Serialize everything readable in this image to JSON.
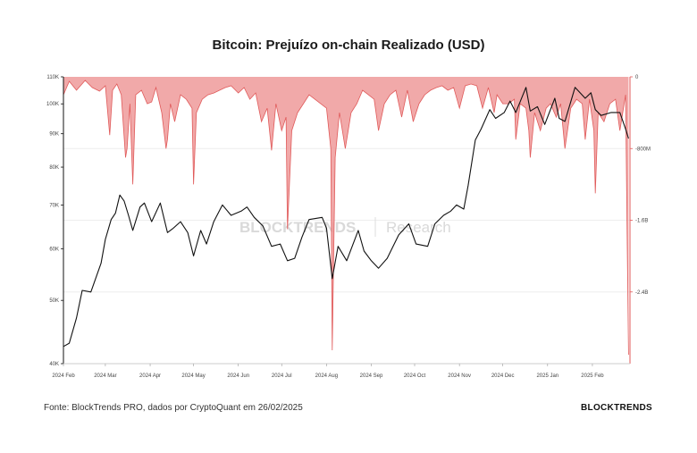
{
  "chart_data": {
    "type": "line",
    "title": "Bitcoin: Prejuízo on-chain Realizado (USD)",
    "xlabel": "",
    "x_ticks": [
      "2024 Feb",
      "2024 Mar",
      "2024 Apr",
      "2024 May",
      "2024 Jun",
      "2024 Jul",
      "2024 Aug",
      "2024 Sep",
      "2024 Oct",
      "2024 Nov",
      "2024 Dec",
      "2025 Jan",
      "2025 Feb"
    ],
    "left_axis": {
      "scale": "log",
      "ylim": [
        40000,
        110000
      ],
      "ticks": [
        40000,
        50000,
        60000,
        70000,
        80000,
        90000,
        100000,
        110000
      ],
      "tick_labels": [
        "40K",
        "50K",
        "60K",
        "70K",
        "80K",
        "90K",
        "100K",
        "110K"
      ]
    },
    "right_axis": {
      "scale": "linear",
      "ylim": [
        -3200000000,
        0
      ],
      "ticks": [
        0,
        -800000000,
        -1600000000,
        -2400000000
      ],
      "tick_labels": [
        "0",
        "-800M",
        "-1.6B",
        "-2.4B"
      ]
    },
    "series": [
      {
        "axis": "left",
        "style": "line",
        "color": "#111111",
        "x": [
          "2024-02-01",
          "2024-02-05",
          "2024-02-10",
          "2024-02-14",
          "2024-02-20",
          "2024-02-27",
          "2024-03-01",
          "2024-03-05",
          "2024-03-08",
          "2024-03-11",
          "2024-03-14",
          "2024-03-17",
          "2024-03-20",
          "2024-03-25",
          "2024-03-28",
          "2024-04-02",
          "2024-04-08",
          "2024-04-13",
          "2024-04-17",
          "2024-04-22",
          "2024-04-27",
          "2024-05-01",
          "2024-05-06",
          "2024-05-10",
          "2024-05-15",
          "2024-05-21",
          "2024-05-27",
          "2024-06-03",
          "2024-06-07",
          "2024-06-12",
          "2024-06-18",
          "2024-06-24",
          "2024-06-30",
          "2024-07-05",
          "2024-07-10",
          "2024-07-15",
          "2024-07-20",
          "2024-07-29",
          "2024-08-01",
          "2024-08-05",
          "2024-08-09",
          "2024-08-15",
          "2024-08-23",
          "2024-08-27",
          "2024-09-01",
          "2024-09-06",
          "2024-09-12",
          "2024-09-20",
          "2024-09-27",
          "2024-10-02",
          "2024-10-10",
          "2024-10-15",
          "2024-10-21",
          "2024-10-26",
          "2024-10-30",
          "2024-11-04",
          "2024-11-07",
          "2024-11-12",
          "2024-11-16",
          "2024-11-22",
          "2024-11-26",
          "2024-12-02",
          "2024-12-06",
          "2024-12-10",
          "2024-12-17",
          "2024-12-20",
          "2024-12-25",
          "2024-12-30",
          "2025-01-06",
          "2025-01-09",
          "2025-01-13",
          "2025-01-20",
          "2025-01-27",
          "2025-01-31",
          "2025-02-03",
          "2025-02-07",
          "2025-02-14",
          "2025-02-20",
          "2025-02-24",
          "2025-02-26"
        ],
        "values": [
          42500,
          43000,
          47000,
          51800,
          51500,
          57000,
          62000,
          66500,
          68000,
          72500,
          71000,
          67500,
          64000,
          69500,
          70500,
          66000,
          70500,
          63500,
          64500,
          66000,
          63500,
          58500,
          64000,
          61000,
          66000,
          70000,
          67500,
          68500,
          69500,
          67000,
          65000,
          60500,
          61000,
          57500,
          58000,
          62500,
          66500,
          67000,
          64500,
          54000,
          60500,
          57500,
          64000,
          59500,
          57500,
          56000,
          58000,
          63000,
          65500,
          61000,
          60500,
          65500,
          67500,
          68500,
          70000,
          69000,
          75000,
          88000,
          91500,
          98000,
          95000,
          97000,
          101000,
          97000,
          106000,
          97500,
          99000,
          93000,
          102000,
          95000,
          94000,
          106000,
          102000,
          104000,
          98000,
          96000,
          97000,
          97000,
          91500,
          88500
        ]
      },
      {
        "axis": "right",
        "style": "area",
        "color": "#e05a5a",
        "fill": "#ef9a9a",
        "x": [
          "2024-02-01",
          "2024-02-05",
          "2024-02-10",
          "2024-02-16",
          "2024-02-21",
          "2024-02-26",
          "2024-03-01",
          "2024-03-04",
          "2024-03-06",
          "2024-03-09",
          "2024-03-12",
          "2024-03-15",
          "2024-03-16",
          "2024-03-18",
          "2024-03-20",
          "2024-03-22",
          "2024-03-26",
          "2024-03-30",
          "2024-04-02",
          "2024-04-05",
          "2024-04-09",
          "2024-04-12",
          "2024-04-13",
          "2024-04-15",
          "2024-04-18",
          "2024-04-22",
          "2024-04-26",
          "2024-04-30",
          "2024-05-01",
          "2024-05-03",
          "2024-05-07",
          "2024-05-11",
          "2024-05-15",
          "2024-05-19",
          "2024-05-23",
          "2024-05-27",
          "2024-06-01",
          "2024-06-05",
          "2024-06-09",
          "2024-06-13",
          "2024-06-17",
          "2024-06-21",
          "2024-06-24",
          "2024-06-27",
          "2024-07-01",
          "2024-07-04",
          "2024-07-05",
          "2024-07-08",
          "2024-07-12",
          "2024-07-16",
          "2024-07-20",
          "2024-07-24",
          "2024-07-28",
          "2024-08-01",
          "2024-08-04",
          "2024-08-05",
          "2024-08-07",
          "2024-08-10",
          "2024-08-14",
          "2024-08-18",
          "2024-08-22",
          "2024-08-26",
          "2024-08-30",
          "2024-09-03",
          "2024-09-06",
          "2024-09-10",
          "2024-09-14",
          "2024-09-18",
          "2024-09-22",
          "2024-09-26",
          "2024-09-30",
          "2024-10-04",
          "2024-10-08",
          "2024-10-12",
          "2024-10-16",
          "2024-10-20",
          "2024-10-24",
          "2024-10-28",
          "2024-11-01",
          "2024-11-05",
          "2024-11-09",
          "2024-11-13",
          "2024-11-17",
          "2024-11-21",
          "2024-11-25",
          "2024-11-27",
          "2024-12-01",
          "2024-12-05",
          "2024-12-09",
          "2024-12-10",
          "2024-12-13",
          "2024-12-17",
          "2024-12-19",
          "2024-12-20",
          "2024-12-23",
          "2024-12-27",
          "2024-12-31",
          "2025-01-03",
          "2025-01-07",
          "2025-01-10",
          "2025-01-13",
          "2025-01-17",
          "2025-01-21",
          "2025-01-25",
          "2025-01-27",
          "2025-01-30",
          "2025-02-02",
          "2025-02-03",
          "2025-02-05",
          "2025-02-09",
          "2025-02-13",
          "2025-02-17",
          "2025-02-20",
          "2025-02-24",
          "2025-02-25",
          "2025-02-26"
        ],
        "values": [
          -200000000,
          -50000000,
          -150000000,
          -40000000,
          -120000000,
          -160000000,
          -100000000,
          -650000000,
          -150000000,
          -80000000,
          -200000000,
          -900000000,
          -800000000,
          -300000000,
          -1200000000,
          -200000000,
          -150000000,
          -300000000,
          -280000000,
          -120000000,
          -400000000,
          -800000000,
          -700000000,
          -300000000,
          -500000000,
          -200000000,
          -250000000,
          -350000000,
          -1200000000,
          -400000000,
          -250000000,
          -200000000,
          -180000000,
          -150000000,
          -120000000,
          -100000000,
          -180000000,
          -120000000,
          -250000000,
          -180000000,
          -500000000,
          -350000000,
          -820000000,
          -300000000,
          -600000000,
          -450000000,
          -1700000000,
          -600000000,
          -400000000,
          -300000000,
          -200000000,
          -250000000,
          -300000000,
          -350000000,
          -800000000,
          -3050000000,
          -900000000,
          -400000000,
          -800000000,
          -400000000,
          -300000000,
          -150000000,
          -200000000,
          -250000000,
          -600000000,
          -300000000,
          -200000000,
          -150000000,
          -450000000,
          -150000000,
          -500000000,
          -300000000,
          -200000000,
          -150000000,
          -120000000,
          -100000000,
          -150000000,
          -120000000,
          -350000000,
          -100000000,
          -80000000,
          -100000000,
          -350000000,
          -120000000,
          -400000000,
          -200000000,
          -300000000,
          -300000000,
          -250000000,
          -700000000,
          -300000000,
          -350000000,
          -600000000,
          -900000000,
          -400000000,
          -600000000,
          -350000000,
          -300000000,
          -450000000,
          -300000000,
          -800000000,
          -350000000,
          -250000000,
          -300000000,
          -700000000,
          -250000000,
          -600000000,
          -1300000000,
          -400000000,
          -500000000,
          -300000000,
          -250000000,
          -600000000,
          -200000000,
          -1750000000,
          -3100000000
        ]
      }
    ],
    "grid": true,
    "legend": "none"
  },
  "watermark": {
    "brand": "BLOCKTRENDS",
    "suffix": "Research"
  },
  "footer": {
    "source": "Fonte: BlockTrends PRO, dados por CryptoQuant em 26/02/2025",
    "brand": "BLOCKTRENDS"
  }
}
